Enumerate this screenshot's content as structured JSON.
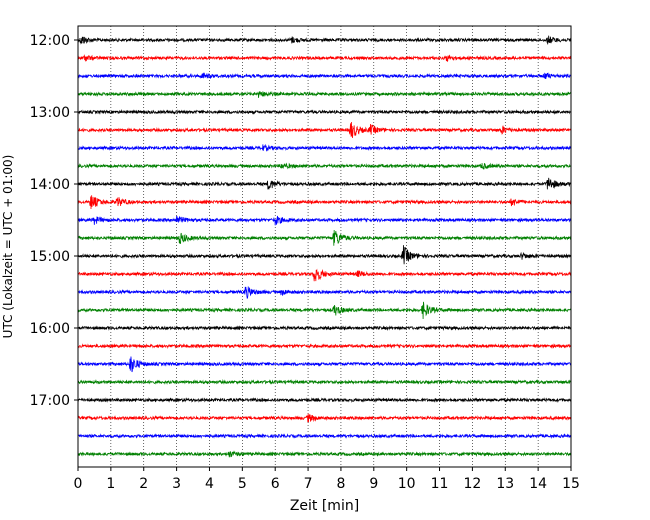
{
  "chart_data": {
    "type": "line",
    "title": "",
    "xlabel": "Zeit  [min]",
    "ylabel": "UTC (Lokalzeit = UTC + 01:00)",
    "xlim": [
      0,
      15
    ],
    "x_ticks": [
      "0",
      "1",
      "2",
      "3",
      "4",
      "5",
      "6",
      "7",
      "8",
      "9",
      "10",
      "11",
      "12",
      "13",
      "14",
      "15"
    ],
    "y_tick_labels": [
      "12:00",
      "13:00",
      "14:00",
      "15:00",
      "16:00",
      "17:00"
    ],
    "grid": "vertical dotted",
    "trace_interval_minutes": 15,
    "trace_colors": [
      "#000000",
      "#ff0000",
      "#0000ff",
      "#008000"
    ],
    "traces": [
      {
        "start": "12:00",
        "color": "#000000",
        "events": [
          {
            "t": 0.1,
            "amp": 0.5
          },
          {
            "t": 6.5,
            "amp": 0.3
          },
          {
            "t": 14.3,
            "amp": 0.4
          }
        ]
      },
      {
        "start": "12:15",
        "color": "#ff0000",
        "events": [
          {
            "t": 0.2,
            "amp": 0.3
          },
          {
            "t": 11.2,
            "amp": 0.3
          }
        ]
      },
      {
        "start": "12:30",
        "color": "#0000ff",
        "events": [
          {
            "t": 3.8,
            "amp": 0.3
          },
          {
            "t": 14.2,
            "amp": 0.3
          }
        ]
      },
      {
        "start": "12:45",
        "color": "#008000",
        "events": [
          {
            "t": 5.5,
            "amp": 0.3
          }
        ]
      },
      {
        "start": "13:00",
        "color": "#000000",
        "events": []
      },
      {
        "start": "13:15",
        "color": "#ff0000",
        "events": [
          {
            "t": 8.3,
            "amp": 1.0
          },
          {
            "t": 8.9,
            "amp": 0.5
          },
          {
            "t": 12.9,
            "amp": 0.4
          }
        ]
      },
      {
        "start": "13:30",
        "color": "#0000ff",
        "events": [
          {
            "t": 5.6,
            "amp": 0.3
          }
        ]
      },
      {
        "start": "13:45",
        "color": "#008000",
        "events": [
          {
            "t": 6.2,
            "amp": 0.3
          },
          {
            "t": 12.3,
            "amp": 0.3
          }
        ]
      },
      {
        "start": "14:00",
        "color": "#000000",
        "events": [
          {
            "t": 5.8,
            "amp": 0.6
          },
          {
            "t": 14.3,
            "amp": 0.8
          }
        ]
      },
      {
        "start": "14:15",
        "color": "#ff0000",
        "events": [
          {
            "t": 0.4,
            "amp": 0.8
          },
          {
            "t": 1.2,
            "amp": 0.5
          },
          {
            "t": 13.2,
            "amp": 0.4
          }
        ]
      },
      {
        "start": "14:30",
        "color": "#0000ff",
        "events": [
          {
            "t": 0.5,
            "amp": 0.4
          },
          {
            "t": 3.0,
            "amp": 0.4
          },
          {
            "t": 6.0,
            "amp": 0.5
          }
        ]
      },
      {
        "start": "14:45",
        "color": "#008000",
        "events": [
          {
            "t": 3.1,
            "amp": 0.6
          },
          {
            "t": 7.8,
            "amp": 1.0
          }
        ]
      },
      {
        "start": "15:00",
        "color": "#000000",
        "events": [
          {
            "t": 9.9,
            "amp": 1.1
          },
          {
            "t": 13.5,
            "amp": 0.3
          }
        ]
      },
      {
        "start": "15:15",
        "color": "#ff0000",
        "events": [
          {
            "t": 7.2,
            "amp": 1.0
          },
          {
            "t": 8.5,
            "amp": 0.3
          }
        ]
      },
      {
        "start": "15:30",
        "color": "#0000ff",
        "events": [
          {
            "t": 5.1,
            "amp": 0.7
          },
          {
            "t": 6.2,
            "amp": 0.3
          }
        ]
      },
      {
        "start": "15:45",
        "color": "#008000",
        "events": [
          {
            "t": 7.8,
            "amp": 0.6
          },
          {
            "t": 10.5,
            "amp": 0.9
          }
        ]
      },
      {
        "start": "16:00",
        "color": "#000000",
        "events": []
      },
      {
        "start": "16:15",
        "color": "#ff0000",
        "events": []
      },
      {
        "start": "16:30",
        "color": "#0000ff",
        "events": [
          {
            "t": 1.6,
            "amp": 1.0
          }
        ]
      },
      {
        "start": "16:45",
        "color": "#008000",
        "events": []
      },
      {
        "start": "17:00",
        "color": "#000000",
        "events": []
      },
      {
        "start": "17:15",
        "color": "#ff0000",
        "events": [
          {
            "t": 7.0,
            "amp": 0.4
          }
        ]
      },
      {
        "start": "17:30",
        "color": "#0000ff",
        "events": []
      },
      {
        "start": "17:45",
        "color": "#008000",
        "events": [
          {
            "t": 4.6,
            "amp": 0.3
          }
        ]
      }
    ]
  }
}
